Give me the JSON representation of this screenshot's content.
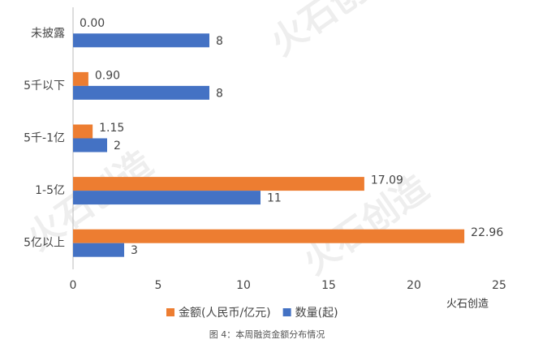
{
  "chart_data": {
    "type": "hbar",
    "categories": [
      "未披露",
      "5千以下",
      "5千-1亿",
      "1-5亿",
      "5亿以上"
    ],
    "series": [
      {
        "name": "金额(人民币/亿元)",
        "color": "#ed7d31",
        "values": [
          0,
          0.9,
          1.15,
          17.09,
          22.96
        ],
        "value_labels": [
          "0.00",
          "0.90",
          "1.15",
          "17.09",
          "22.96"
        ]
      },
      {
        "name": "数量(起)",
        "color": "#4472c4",
        "values": [
          8,
          8,
          2,
          11,
          3
        ]
      }
    ],
    "xlim": [
      0,
      25
    ],
    "xticks": [
      0,
      5,
      10,
      15,
      20,
      25
    ],
    "caption": "图 4：本周融资金额分布情况",
    "watermark": "火石创造"
  }
}
